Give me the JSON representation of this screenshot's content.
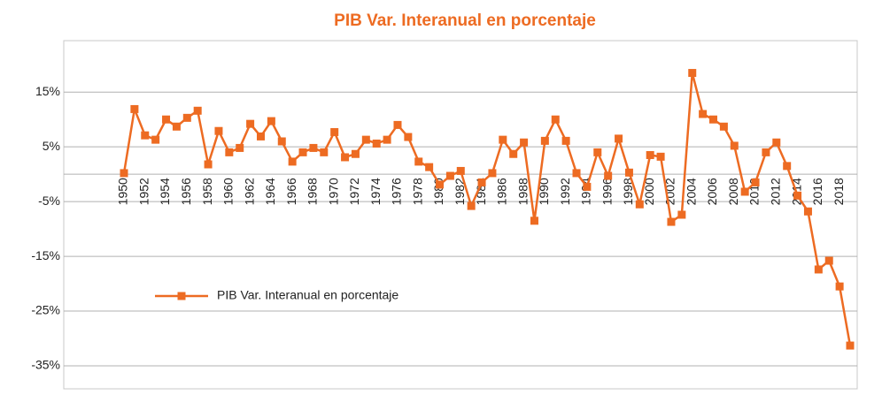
{
  "chart_data": {
    "type": "line",
    "title": "PIB Var. Interanual en porcentaje",
    "categories": [
      "1950",
      null,
      "1952",
      null,
      "1954",
      null,
      "1956",
      null,
      "1958",
      null,
      "1960",
      null,
      "1962",
      null,
      "1964",
      null,
      "1966",
      null,
      "1968",
      null,
      "1970",
      null,
      "1972",
      null,
      "1974",
      null,
      "1976",
      null,
      "1978",
      null,
      "1980",
      null,
      "1982",
      null,
      "1984",
      null,
      "1986",
      null,
      "1988",
      null,
      "1990",
      null,
      "1992",
      null,
      "1994",
      null,
      "1996",
      null,
      "1998",
      null,
      "2000",
      null,
      "2002",
      null,
      "2004",
      null,
      "2006",
      null,
      "2008",
      null,
      "2010",
      null,
      "2012",
      null,
      "2014",
      null,
      "2016",
      null,
      "2018",
      null
    ],
    "series": [
      {
        "name": "PIB Var. Interanual en porcentaje",
        "color": "#ed6b22",
        "values": [
          0.2,
          11.9,
          7.1,
          6.3,
          10,
          8.7,
          10.3,
          11.6,
          1.8,
          7.9,
          4.0,
          4.8,
          9.2,
          6.9,
          9.7,
          6.0,
          2.3,
          4.0,
          4.8,
          4.0,
          7.7,
          3.1,
          3.7,
          6.3,
          5.6,
          6.3,
          9.0,
          6.8,
          2.3,
          1.3,
          -1.9,
          -0.3,
          0.6,
          -5.8,
          -1.5,
          0.2,
          6.3,
          3.7,
          5.8,
          -8.5,
          6.1,
          10.0,
          6.1,
          0.2,
          -2.3,
          4.0,
          -0.3,
          6.5,
          0.3,
          -5.5,
          3.5,
          3.2,
          -8.7,
          -7.4,
          18.5,
          11,
          10,
          8.7,
          5.2,
          -3.2,
          -1.5,
          4.0,
          5.8,
          1.5,
          -3.9,
          -6.8,
          -17.4,
          -15.8,
          -20.5,
          -31.3
        ]
      }
    ],
    "ylim": [
      -39.2,
      24.4
    ],
    "yticks": [
      {
        "value": 15,
        "label": "15%"
      },
      {
        "value": 5,
        "label": "5%"
      },
      {
        "value": -5,
        "label": "-5%"
      },
      {
        "value": -15,
        "label": "-15%"
      },
      {
        "value": -25,
        "label": "-25%"
      },
      {
        "value": -35,
        "label": "-35%"
      }
    ],
    "grid": true,
    "legend": "lower-left"
  }
}
